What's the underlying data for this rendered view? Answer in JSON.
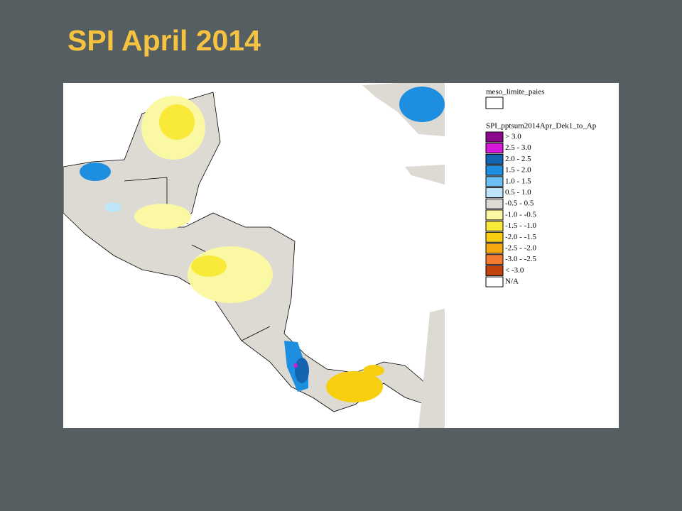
{
  "title": "SPI April 2014",
  "legend": {
    "layer_title": "meso_limite_paies",
    "spi_title": "SPI_pptsum2014Apr_Dek1_to_Ap",
    "entries": [
      {
        "label": "> 3.0",
        "color": "#8b0a8b"
      },
      {
        "label": "2.5 - 3.0",
        "color": "#d41ad8"
      },
      {
        "label": "2.0 - 2.5",
        "color": "#1464b0"
      },
      {
        "label": "1.5 - 2.0",
        "color": "#1e8ee0"
      },
      {
        "label": "1.0 - 1.5",
        "color": "#6ec0f4"
      },
      {
        "label": "0.5 - 1.0",
        "color": "#bfe6f8"
      },
      {
        "label": "-0.5  - 0.5",
        "color": "#dcdad2"
      },
      {
        "label": "-1.0 - -0.5",
        "color": "#fbf8a4"
      },
      {
        "label": "-1.5 - -1.0",
        "color": "#f9ea3a"
      },
      {
        "label": "-2.0 - -1.5",
        "color": "#f8cf10"
      },
      {
        "label": "-2.5 - -2.0",
        "color": "#f5a810"
      },
      {
        "label": "-3.0 - -2.5",
        "color": "#f27b30"
      },
      {
        "label": "< -3.0",
        "color": "#c4420e"
      },
      {
        "label": "N/A",
        "color": "#ffffff"
      }
    ]
  }
}
